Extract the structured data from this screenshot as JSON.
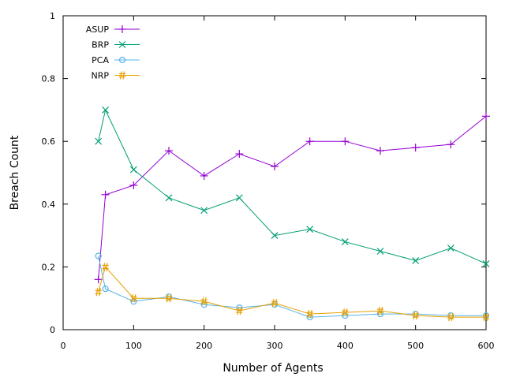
{
  "chart_data": {
    "type": "line",
    "title": "",
    "xlabel": "Number of Agents",
    "ylabel": "Breach Count",
    "xlim": [
      0,
      600
    ],
    "ylim": [
      0,
      1
    ],
    "xticks": [
      0,
      100,
      200,
      300,
      400,
      500,
      600
    ],
    "yticks": [
      0,
      0.2,
      0.4,
      0.6,
      0.8,
      1
    ],
    "ytick_labels": [
      "0",
      "0.2",
      "0.4",
      "0.6",
      "0.8",
      "1"
    ],
    "grid": false,
    "legend_position": "top-left",
    "x": [
      50,
      60,
      100,
      150,
      200,
      250,
      300,
      350,
      400,
      450,
      500,
      550,
      600
    ],
    "series": [
      {
        "name": "ASUP",
        "color": "#9400d3",
        "marker": "+",
        "values": [
          0.16,
          0.43,
          0.46,
          0.57,
          0.49,
          0.56,
          0.52,
          0.6,
          0.6,
          0.57,
          0.58,
          0.59,
          0.68
        ]
      },
      {
        "name": "BRP",
        "color": "#009e73",
        "marker": "x",
        "values": [
          0.6,
          0.7,
          0.51,
          0.42,
          0.38,
          0.42,
          0.3,
          0.32,
          0.28,
          0.25,
          0.22,
          0.26,
          0.21
        ]
      },
      {
        "name": "PCA",
        "color": "#56b4e9",
        "marker": "o",
        "values": [
          0.235,
          0.13,
          0.09,
          0.105,
          0.08,
          0.07,
          0.08,
          0.04,
          0.045,
          0.05,
          0.05,
          0.045,
          0.045
        ]
      },
      {
        "name": "NRP",
        "color": "#e69f00",
        "marker": "#",
        "values": [
          0.12,
          0.2,
          0.1,
          0.1,
          0.09,
          0.06,
          0.085,
          0.05,
          0.055,
          0.06,
          0.045,
          0.04,
          0.04
        ]
      }
    ]
  }
}
